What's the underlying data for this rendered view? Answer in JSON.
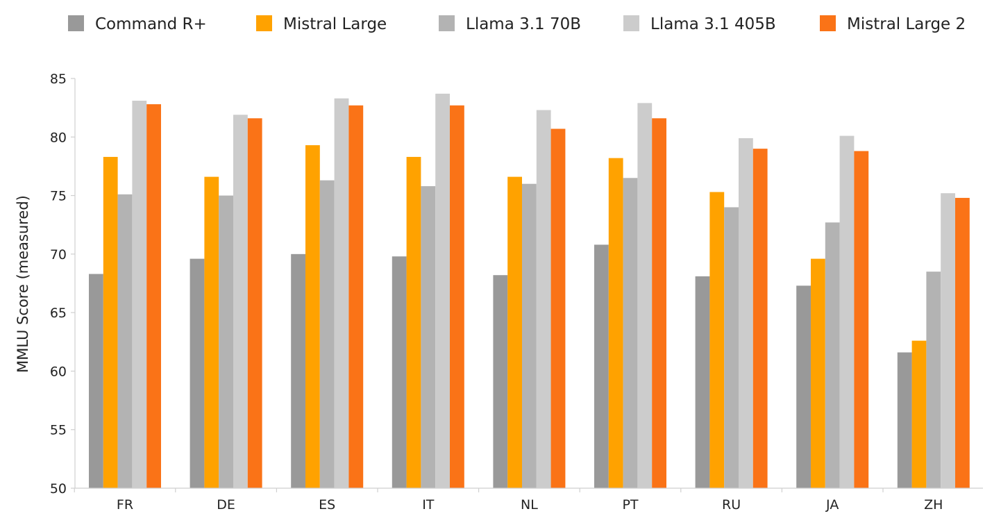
{
  "chart_data": {
    "type": "bar",
    "title": "",
    "xlabel": "",
    "ylabel": "MMLU Score (measured)",
    "ylim": [
      50,
      85
    ],
    "yticks": [
      50,
      55,
      60,
      65,
      70,
      75,
      80,
      85
    ],
    "grid": false,
    "legend_position": "top",
    "categories": [
      "FR",
      "DE",
      "ES",
      "IT",
      "NL",
      "PT",
      "RU",
      "JA",
      "ZH"
    ],
    "series": [
      {
        "name": "Command R+",
        "color": "#999999",
        "values": [
          68.3,
          69.6,
          70.0,
          69.8,
          68.2,
          70.8,
          68.1,
          67.3,
          61.6
        ]
      },
      {
        "name": "Mistral Large",
        "color": "#FFA200",
        "values": [
          78.3,
          76.6,
          79.3,
          78.3,
          76.6,
          78.2,
          75.3,
          69.6,
          62.6
        ]
      },
      {
        "name": "Llama 3.1 70B",
        "color": "#B3B3B3",
        "values": [
          75.1,
          75.0,
          76.3,
          75.8,
          76.0,
          76.5,
          74.0,
          72.7,
          68.5
        ]
      },
      {
        "name": "Llama 3.1 405B",
        "color": "#CCCCCC",
        "values": [
          83.1,
          81.9,
          83.3,
          83.7,
          82.3,
          82.9,
          79.9,
          80.1,
          75.2
        ]
      },
      {
        "name": "Mistral Large 2",
        "color": "#FA7317",
        "values": [
          82.8,
          81.6,
          82.7,
          82.7,
          80.7,
          81.6,
          79.0,
          78.8,
          74.8
        ]
      }
    ]
  }
}
